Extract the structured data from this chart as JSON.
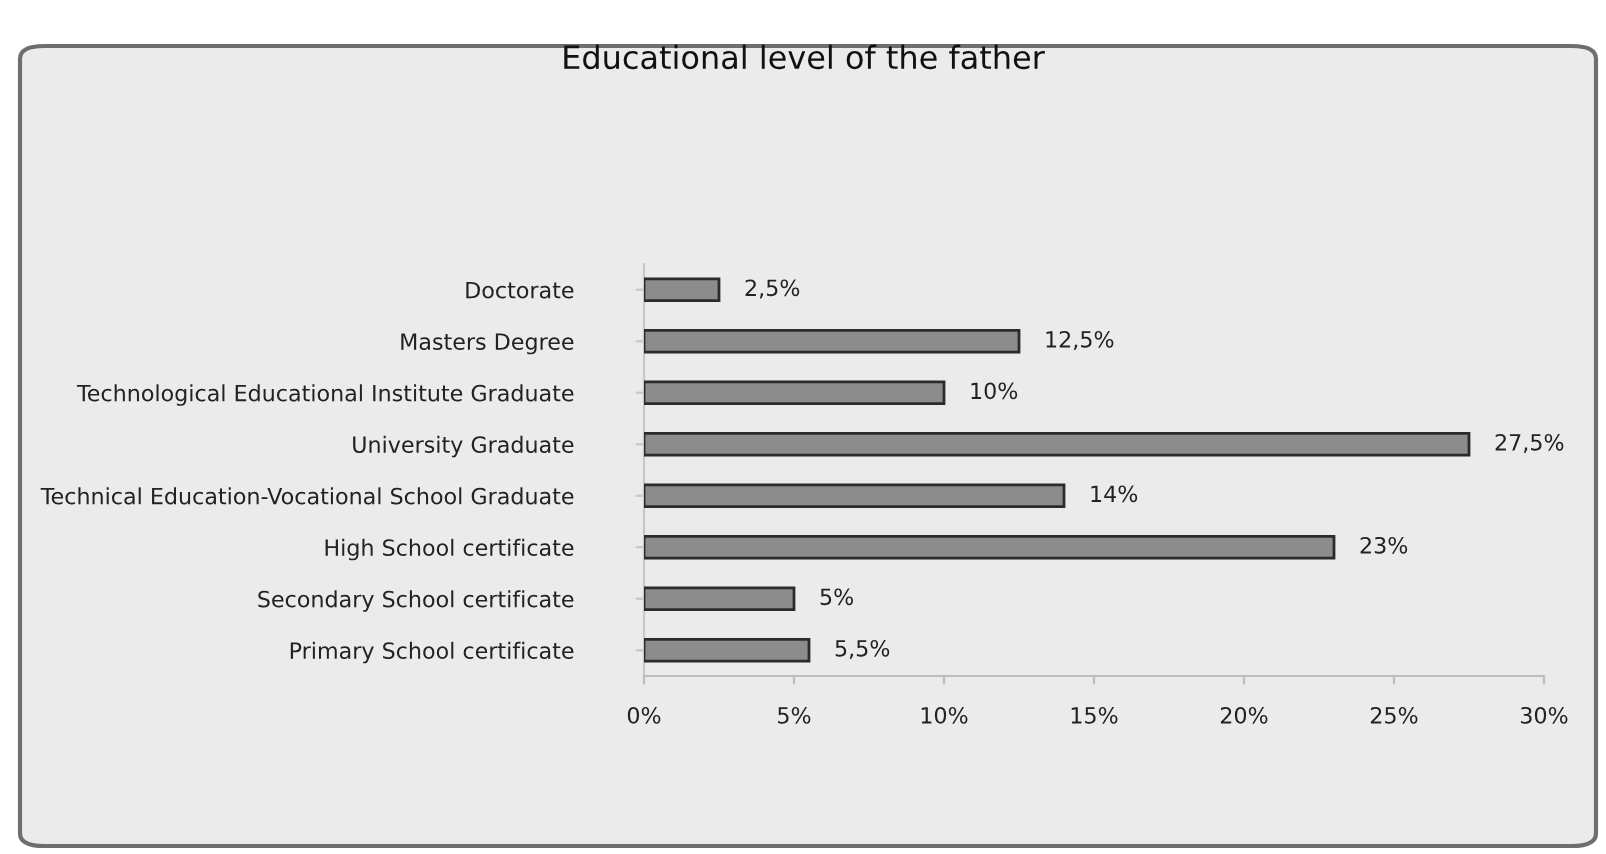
{
  "chart_data": {
    "type": "bar",
    "orientation": "horizontal",
    "title": "Educational level of the father",
    "categories": [
      "Doctorate",
      "Masters Degree",
      "Technological Educational Institute Graduate",
      "University Graduate",
      "Technical Education-Vocational School Graduate",
      "High School certificate",
      "Secondary School certificate",
      "Primary School certificate"
    ],
    "values": [
      2.5,
      12.5,
      10,
      27.5,
      14,
      23,
      5,
      5.5
    ],
    "value_labels": [
      "2,5%",
      "12,5%",
      "10%",
      "27,5%",
      "14%",
      "23%",
      "5%",
      "5,5%"
    ],
    "color": "#8c8c8c",
    "xlim": [
      0,
      30
    ],
    "xticks": [
      {
        "value": 0,
        "label": "0%"
      },
      {
        "value": 5,
        "label": "5%"
      },
      {
        "value": 10,
        "label": "10%"
      },
      {
        "value": 15,
        "label": "15%"
      },
      {
        "value": 20,
        "label": "20%"
      },
      {
        "value": 25,
        "label": "25%"
      },
      {
        "value": 30,
        "label": "30%"
      }
    ]
  }
}
